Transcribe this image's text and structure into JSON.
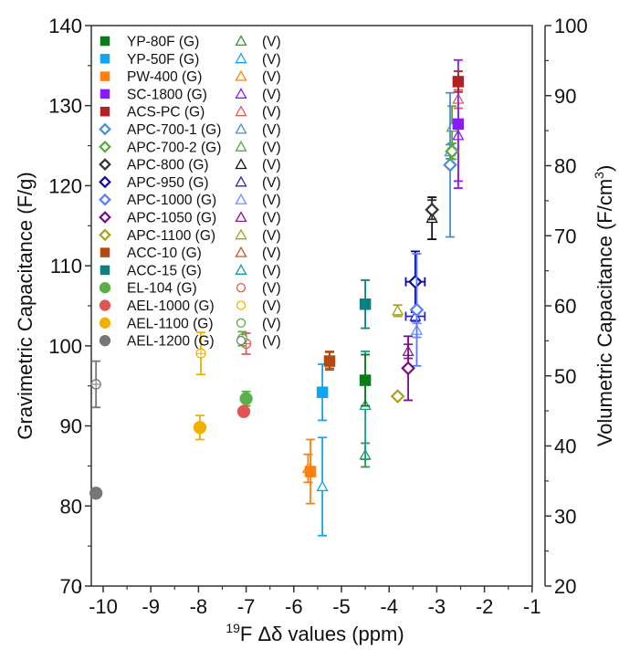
{
  "chart_data": {
    "type": "scatter",
    "title": "",
    "xlabel": "19F Δδ values (ppm)",
    "xlabel_sup": "19",
    "xlabel_main": "F Δδ values (ppm)",
    "ylabel": "Gravimetric Capacitance (F/g)",
    "y2label": "Volumetric Capacitance (F/cm3)",
    "y2label_main": "Volumetric Capacitance (F/cm",
    "y2label_sup": "3",
    "y2label_close": ")",
    "xlim": [
      -10.5,
      -1
    ],
    "ylim": [
      70,
      140
    ],
    "y2lim": [
      20,
      100
    ],
    "xticks": [
      -10,
      -9,
      -8,
      -7,
      -6,
      -5,
      -4,
      -3,
      -2,
      -1
    ],
    "xtick_labels": [
      "-10",
      "-9",
      "-8",
      "-7",
      "-6",
      "-5",
      "-4",
      "-3",
      "-2",
      "-1"
    ],
    "yticks": [
      70,
      80,
      90,
      100,
      110,
      120,
      130,
      140
    ],
    "ytick_labels": [
      "70",
      "80",
      "90",
      "100",
      "110",
      "120",
      "130",
      "140"
    ],
    "y2ticks": [
      20,
      30,
      40,
      50,
      60,
      70,
      80,
      90,
      100
    ],
    "y2tick_labels": [
      "20",
      "30",
      "40",
      "50",
      "60",
      "70",
      "80",
      "90",
      "100"
    ],
    "grid": false,
    "legend_position": "top-left",
    "series": [
      {
        "name": "YP-80F",
        "g_label": "YP-80F (G)",
        "v_label": "(V)",
        "color": "#0a7d1a",
        "v_color": "#2e9a3a",
        "g_marker": "square",
        "v_marker": "triangle",
        "x": -4.5,
        "g": 95.7,
        "g_err": 3.2,
        "v_x": -4.5,
        "v": 38.7,
        "v_err": 1.7
      },
      {
        "name": "YP-50F",
        "g_label": "YP-50F (G)",
        "v_label": "(V)",
        "color": "#12a4f0",
        "v_color": "#12a4f0",
        "g_marker": "square",
        "v_marker": "triangle",
        "x": -5.4,
        "g": 94.2,
        "g_err": 3.5,
        "v_x": -5.4,
        "v": 34.2,
        "v_err": 7.0
      },
      {
        "name": "PW-400",
        "g_label": "PW-400 (G)",
        "v_label": "(V)",
        "color": "#ff7f0e",
        "v_color": "#ff7f0e",
        "g_marker": "square",
        "v_marker": "triangle",
        "x": -5.65,
        "g": 84.3,
        "g_err": 4.0,
        "v_x": -5.7,
        "v": 36.8,
        "v_err": 2.0
      },
      {
        "name": "SC-1800",
        "g_label": "SC-1800 (G)",
        "v_label": "(V)",
        "color": "#8b1aff",
        "v_color": "#8b1aff",
        "g_marker": "square",
        "v_marker": "triangle",
        "x": -2.55,
        "g": 127.7,
        "g_err": 8.0,
        "v_x": -2.55,
        "v": 84.3,
        "v_err": 6.5
      },
      {
        "name": "ACS-PC",
        "g_label": "ACS-PC (G)",
        "v_label": "(V)",
        "color": "#b22222",
        "v_color": "#e05a5a",
        "g_marker": "square",
        "v_marker": "triangle",
        "x": -2.55,
        "g": 133.0,
        "g_err": 1.3,
        "v_x": -2.55,
        "v": 89.5,
        "v_err": 1.3
      },
      {
        "name": "APC-700-1",
        "g_label": "APC-700-1 (G)",
        "v_label": "(V)",
        "color": "#4a8ed4",
        "v_color": "#4a8ed4",
        "g_marker": "diamond",
        "v_marker": "triangle",
        "x": -2.72,
        "g": 122.6,
        "g_err": 9.0,
        "v_x": -2.72,
        "v": 82.0,
        "v_err": 1.0
      },
      {
        "name": "APC-700-2",
        "g_label": "APC-700-2 (G)",
        "v_label": "(V)",
        "color": "#5aa83a",
        "v_color": "#5aa83a",
        "g_marker": "diamond",
        "v_marker": "triangle",
        "x": -2.68,
        "g": 124.3,
        "g_err": 1.0,
        "v_x": -2.68,
        "v": 85.5,
        "v_err": 3.0
      },
      {
        "name": "APC-800",
        "g_label": "APC-800 (G)",
        "v_label": "(V)",
        "color": "#333333",
        "v_color": "#111111",
        "g_marker": "diamond",
        "v_marker": "triangle",
        "x": -3.1,
        "g": 117.0,
        "g_err": 1.2,
        "v_x": -3.1,
        "v": 72.5,
        "v_err": 3.0
      },
      {
        "name": "APC-950",
        "g_label": "APC-950 (G)",
        "v_label": "(V)",
        "color": "#0a0a9a",
        "v_color": "#2a2ab0",
        "g_marker": "diamond",
        "v_marker": "triangle",
        "x": -3.45,
        "g": 108.0,
        "g_err": 3.8,
        "x_err": 0.2,
        "v_x": -3.45,
        "v": 58.5,
        "v_err": 0.7,
        "v_x_err": 0.2
      },
      {
        "name": "APC-1000",
        "g_label": "APC-1000 (G)",
        "v_label": "(V)",
        "color": "#5b7bff",
        "v_color": "#6f8cff",
        "g_marker": "diamond",
        "v_marker": "triangle",
        "x": -3.42,
        "g": 104.5,
        "g_err": 7.0,
        "v_x": -3.42,
        "v": 56.5,
        "v_err": 1.0
      },
      {
        "name": "APC-1050",
        "g_label": "APC-1050 (G)",
        "v_label": "(V)",
        "color": "#7a0a8a",
        "v_color": "#8a1a9a",
        "g_marker": "diamond",
        "v_marker": "triangle",
        "x": -3.6,
        "g": 97.2,
        "g_err": 4.0,
        "v_x": -3.6,
        "v": 53.5,
        "v_err": 1.0
      },
      {
        "name": "APC-1100",
        "g_label": "APC-1100 (G)",
        "v_label": "(V)",
        "color": "#a8a020",
        "v_color": "#a8a020",
        "g_marker": "diamond",
        "v_marker": "triangle",
        "x": -3.82,
        "g": 93.7,
        "g_err": 0,
        "v_x": -3.82,
        "v": 59.3,
        "v_err": 0.8
      },
      {
        "name": "ACC-10",
        "g_label": "ACC-10 (G)",
        "v_label": "(V)",
        "color": "#b5480e",
        "v_color": "#c25a28",
        "g_marker": "square",
        "v_marker": "triangle",
        "x": -5.25,
        "g": 98.1,
        "g_err": 1.1,
        "v_x": -5.25,
        "v": 52.3,
        "v_err": 1.2
      },
      {
        "name": "ACC-15",
        "g_label": "ACC-15 (G)",
        "v_label": "(V)",
        "color": "#0f8080",
        "v_color": "#1a9a90",
        "g_marker": "square",
        "v_marker": "triangle",
        "x": -4.5,
        "g": 105.2,
        "g_err": 3.0,
        "v_x": -4.5,
        "v": 45.8,
        "v_err": 7.7
      },
      {
        "name": "EL-104",
        "g_label": "EL-104 (G)",
        "v_label": "(V)",
        "color": "#5aaf48",
        "v_color": "#e85858",
        "g_marker": "circle",
        "v_marker": "circle",
        "x": -7.0,
        "g": 93.4,
        "g_err": 0.9,
        "v_x": -7.0,
        "v": 54.6,
        "v_err": 1.5
      },
      {
        "name": "AEL-1000",
        "g_label": "AEL-1000 (G)",
        "v_label": "(V)",
        "color": "#e05555",
        "v_color": "#f0b000",
        "g_marker": "circle",
        "v_marker": "circle",
        "x": -7.05,
        "g": 91.8,
        "g_err": 0,
        "v_x": -7.95,
        "v": 53.2,
        "v_err": 3.0
      },
      {
        "name": "AEL-1100",
        "g_label": "AEL-1100 (G)",
        "v_label": "(V)",
        "color": "#f0b000",
        "v_color": "#5aaf48",
        "g_marker": "circle",
        "v_marker": "circle",
        "x": -7.97,
        "g": 89.8,
        "g_err": 1.5,
        "v_x": -7.08,
        "v": 55.3,
        "v_err": 1.0
      },
      {
        "name": "AEL-1200",
        "g_label": "AEL-1200 (G)",
        "v_label": "(V)",
        "color": "#777777",
        "v_color": "#777777",
        "g_marker": "circle",
        "v_marker": "circle",
        "x": -10.15,
        "g": 81.6,
        "g_err": 0,
        "v_x": -10.15,
        "v": 48.8,
        "v_err": 3.3
      }
    ]
  }
}
